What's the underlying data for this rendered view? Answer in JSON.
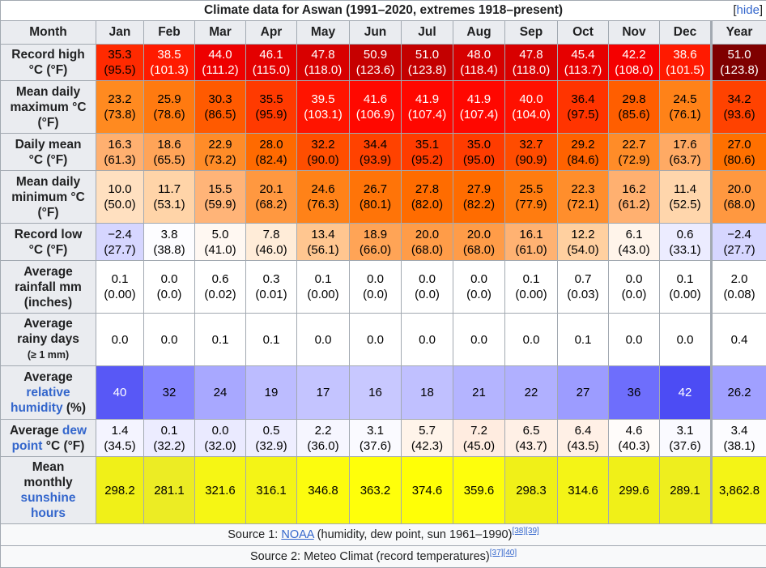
{
  "title": "Climate data for Aswan (1991–2020, extremes 1918–present)",
  "hide_label": "hide",
  "corner_label": "Month",
  "months": [
    "Jan",
    "Feb",
    "Mar",
    "Apr",
    "May",
    "Jun",
    "Jul",
    "Aug",
    "Sep",
    "Oct",
    "Nov",
    "Dec",
    "Year"
  ],
  "rows": [
    {
      "label_parts": [
        {
          "text": "Record high"
        },
        {
          "br": true
        },
        {
          "text": "°C (°F)"
        }
      ],
      "cells": [
        [
          "35.3",
          "(95.5)",
          "#ff2a00",
          "#000000"
        ],
        [
          "38.5",
          "(101.3)",
          "#ff1a00",
          "#ffffff"
        ],
        [
          "44.0",
          "(111.2)",
          "#ee0000",
          "#ffffff"
        ],
        [
          "46.1",
          "(115.0)",
          "#e30000",
          "#ffffff"
        ],
        [
          "47.8",
          "(118.0)",
          "#d80000",
          "#ffffff"
        ],
        [
          "50.9",
          "(123.6)",
          "#c60000",
          "#ffffff"
        ],
        [
          "51.0",
          "(123.8)",
          "#c30000",
          "#ffffff"
        ],
        [
          "48.0",
          "(118.4)",
          "#d60000",
          "#ffffff"
        ],
        [
          "47.8",
          "(118.0)",
          "#d80000",
          "#ffffff"
        ],
        [
          "45.4",
          "(113.7)",
          "#e60000",
          "#ffffff"
        ],
        [
          "42.2",
          "(108.0)",
          "#f50000",
          "#ffffff"
        ],
        [
          "38.6",
          "(101.5)",
          "#ff1a00",
          "#ffffff"
        ],
        [
          "51.0",
          "(123.8)",
          "#7f0000",
          "#ffffff"
        ]
      ]
    },
    {
      "label_parts": [
        {
          "text": "Mean daily"
        },
        {
          "br": true
        },
        {
          "text": "maximum °C"
        },
        {
          "br": true
        },
        {
          "text": "(°F)"
        }
      ],
      "cells": [
        [
          "23.2",
          "(73.8)",
          "#ff8a20",
          "#000000"
        ],
        [
          "25.9",
          "(78.6)",
          "#ff7a10",
          "#000000"
        ],
        [
          "30.3",
          "(86.5)",
          "#ff5a00",
          "#000000"
        ],
        [
          "35.5",
          "(95.9)",
          "#ff3a00",
          "#000000"
        ],
        [
          "39.5",
          "(103.1)",
          "#ff1400",
          "#ffffff"
        ],
        [
          "41.6",
          "(106.9)",
          "#ff0800",
          "#ffffff"
        ],
        [
          "41.9",
          "(107.4)",
          "#ff0700",
          "#ffffff"
        ],
        [
          "41.9",
          "(107.4)",
          "#ff0700",
          "#ffffff"
        ],
        [
          "40.0",
          "(104.0)",
          "#ff1000",
          "#ffffff"
        ],
        [
          "36.4",
          "(97.5)",
          "#ff3400",
          "#000000"
        ],
        [
          "29.8",
          "(85.6)",
          "#ff5e00",
          "#000000"
        ],
        [
          "24.5",
          "(76.1)",
          "#ff8218",
          "#000000"
        ],
        [
          "34.2",
          "(93.6)",
          "#ff4200",
          "#000000"
        ]
      ]
    },
    {
      "label_parts": [
        {
          "text": "Daily mean"
        },
        {
          "br": true
        },
        {
          "text": "°C (°F)"
        }
      ],
      "cells": [
        [
          "16.3",
          "(61.3)",
          "#ffb070",
          "#000000"
        ],
        [
          "18.6",
          "(65.5)",
          "#ffa458",
          "#000000"
        ],
        [
          "22.9",
          "(73.2)",
          "#ff8c28",
          "#000000"
        ],
        [
          "28.0",
          "(82.4)",
          "#ff6a00",
          "#000000"
        ],
        [
          "32.2",
          "(90.0)",
          "#ff4e00",
          "#000000"
        ],
        [
          "34.4",
          "(93.9)",
          "#ff4200",
          "#000000"
        ],
        [
          "35.1",
          "(95.2)",
          "#ff3c00",
          "#000000"
        ],
        [
          "35.0",
          "(95.0)",
          "#ff3c00",
          "#000000"
        ],
        [
          "32.7",
          "(90.9)",
          "#ff4c00",
          "#000000"
        ],
        [
          "29.2",
          "(84.6)",
          "#ff6200",
          "#000000"
        ],
        [
          "22.7",
          "(72.9)",
          "#ff8c28",
          "#000000"
        ],
        [
          "17.6",
          "(63.7)",
          "#ffaa64",
          "#000000"
        ],
        [
          "27.0",
          "(80.6)",
          "#ff7000",
          "#000000"
        ]
      ]
    },
    {
      "label_parts": [
        {
          "text": "Mean daily"
        },
        {
          "br": true
        },
        {
          "text": "minimum °C"
        },
        {
          "br": true
        },
        {
          "text": "(°F)"
        }
      ],
      "cells": [
        [
          "10.0",
          "(50.0)",
          "#ffe0c0",
          "#000000"
        ],
        [
          "11.7",
          "(53.1)",
          "#ffd4a8",
          "#000000"
        ],
        [
          "15.5",
          "(59.9)",
          "#ffb478",
          "#000000"
        ],
        [
          "20.1",
          "(68.2)",
          "#ff9840",
          "#000000"
        ],
        [
          "24.6",
          "(76.3)",
          "#ff8218",
          "#000000"
        ],
        [
          "26.7",
          "(80.1)",
          "#ff7408",
          "#000000"
        ],
        [
          "27.8",
          "(82.0)",
          "#ff6c00",
          "#000000"
        ],
        [
          "27.9",
          "(82.2)",
          "#ff6c00",
          "#000000"
        ],
        [
          "25.5",
          "(77.9)",
          "#ff7c10",
          "#000000"
        ],
        [
          "22.3",
          "(72.1)",
          "#ff8e2c",
          "#000000"
        ],
        [
          "16.2",
          "(61.2)",
          "#ffb070",
          "#000000"
        ],
        [
          "11.4",
          "(52.5)",
          "#ffd6ac",
          "#000000"
        ],
        [
          "20.0",
          "(68.0)",
          "#ff9840",
          "#000000"
        ]
      ]
    },
    {
      "label_parts": [
        {
          "text": "Record low"
        },
        {
          "br": true
        },
        {
          "text": "°C (°F)"
        }
      ],
      "cells": [
        [
          "−2.4",
          "(27.7)",
          "#d6d6ff",
          "#000000"
        ],
        [
          "3.8",
          "(38.8)",
          "#fdfdff",
          "#000000"
        ],
        [
          "5.0",
          "(41.0)",
          "#fff8f2",
          "#000000"
        ],
        [
          "7.8",
          "(46.0)",
          "#ffecd8",
          "#000000"
        ],
        [
          "13.4",
          "(56.1)",
          "#ffc690",
          "#000000"
        ],
        [
          "18.9",
          "(66.0)",
          "#ffa456",
          "#000000"
        ],
        [
          "20.0",
          "(68.0)",
          "#ff9c48",
          "#000000"
        ],
        [
          "20.0",
          "(68.0)",
          "#ff9c48",
          "#000000"
        ],
        [
          "16.1",
          "(61.0)",
          "#ffb272",
          "#000000"
        ],
        [
          "12.2",
          "(54.0)",
          "#ffd0a0",
          "#000000"
        ],
        [
          "6.1",
          "(43.0)",
          "#fff4ea",
          "#000000"
        ],
        [
          "0.6",
          "(33.1)",
          "#ececff",
          "#000000"
        ],
        [
          "−2.4",
          "(27.7)",
          "#d6d6ff",
          "#000000"
        ]
      ]
    },
    {
      "label_parts": [
        {
          "text": "Average"
        },
        {
          "br": true
        },
        {
          "text": "rainfall mm"
        },
        {
          "br": true
        },
        {
          "text": "(inches)"
        }
      ],
      "cells": [
        [
          "0.1",
          "(0.00)",
          "#ffffff",
          "#000000"
        ],
        [
          "0.0",
          "(0.0)",
          "#ffffff",
          "#000000"
        ],
        [
          "0.6",
          "(0.02)",
          "#ffffff",
          "#000000"
        ],
        [
          "0.3",
          "(0.01)",
          "#ffffff",
          "#000000"
        ],
        [
          "0.1",
          "(0.00)",
          "#ffffff",
          "#000000"
        ],
        [
          "0.0",
          "(0.0)",
          "#ffffff",
          "#000000"
        ],
        [
          "0.0",
          "(0.0)",
          "#ffffff",
          "#000000"
        ],
        [
          "0.0",
          "(0.0)",
          "#ffffff",
          "#000000"
        ],
        [
          "0.1",
          "(0.00)",
          "#ffffff",
          "#000000"
        ],
        [
          "0.7",
          "(0.03)",
          "#ffffff",
          "#000000"
        ],
        [
          "0.0",
          "(0.0)",
          "#ffffff",
          "#000000"
        ],
        [
          "0.1",
          "(0.00)",
          "#ffffff",
          "#000000"
        ],
        [
          "2.0",
          "(0.08)",
          "#ffffff",
          "#000000"
        ]
      ]
    },
    {
      "label_parts": [
        {
          "text": "Average"
        },
        {
          "br": true
        },
        {
          "text": "rainy days"
        },
        {
          "br": true
        },
        {
          "text": "(≥ 1 mm)",
          "small": true
        }
      ],
      "cells": [
        [
          "0.0",
          "",
          "#ffffff",
          "#000000"
        ],
        [
          "0.0",
          "",
          "#ffffff",
          "#000000"
        ],
        [
          "0.1",
          "",
          "#ffffff",
          "#000000"
        ],
        [
          "0.1",
          "",
          "#ffffff",
          "#000000"
        ],
        [
          "0.0",
          "",
          "#ffffff",
          "#000000"
        ],
        [
          "0.0",
          "",
          "#ffffff",
          "#000000"
        ],
        [
          "0.0",
          "",
          "#ffffff",
          "#000000"
        ],
        [
          "0.0",
          "",
          "#ffffff",
          "#000000"
        ],
        [
          "0.0",
          "",
          "#ffffff",
          "#000000"
        ],
        [
          "0.1",
          "",
          "#ffffff",
          "#000000"
        ],
        [
          "0.0",
          "",
          "#ffffff",
          "#000000"
        ],
        [
          "0.0",
          "",
          "#ffffff",
          "#000000"
        ],
        [
          "0.4",
          "",
          "#ffffff",
          "#000000"
        ]
      ]
    },
    {
      "label_parts": [
        {
          "text": "Average"
        },
        {
          "br": true
        },
        {
          "text": "relative",
          "link": true
        },
        {
          "br": true
        },
        {
          "text": "humidity",
          "link": true
        },
        {
          "text": " (%)"
        }
      ],
      "cells": [
        [
          "40",
          "",
          "#5858f6",
          "#ffffff"
        ],
        [
          "32",
          "",
          "#8686ff",
          "#000000"
        ],
        [
          "24",
          "",
          "#a8a8ff",
          "#000000"
        ],
        [
          "19",
          "",
          "#bcbcff",
          "#000000"
        ],
        [
          "17",
          "",
          "#c4c4ff",
          "#000000"
        ],
        [
          "16",
          "",
          "#c8c8ff",
          "#000000"
        ],
        [
          "18",
          "",
          "#c0c0ff",
          "#000000"
        ],
        [
          "21",
          "",
          "#b4b4ff",
          "#000000"
        ],
        [
          "22",
          "",
          "#b0b0ff",
          "#000000"
        ],
        [
          "27",
          "",
          "#9c9cff",
          "#000000"
        ],
        [
          "36",
          "",
          "#6e6efc",
          "#000000"
        ],
        [
          "42",
          "",
          "#4c4cf4",
          "#ffffff"
        ],
        [
          "26.2",
          "",
          "#a0a0ff",
          "#000000"
        ]
      ]
    },
    {
      "label_parts": [
        {
          "text": "Average "
        },
        {
          "text": "dew",
          "link": true
        },
        {
          "br": true
        },
        {
          "text": "point",
          "link": true
        },
        {
          "text": " °C (°F)"
        }
      ],
      "cells": [
        [
          "1.4",
          "(34.5)",
          "#f4f4ff",
          "#000000"
        ],
        [
          "0.1",
          "(32.2)",
          "#ececff",
          "#000000"
        ],
        [
          "0.0",
          "(32.0)",
          "#eaeaff",
          "#000000"
        ],
        [
          "0.5",
          "(32.9)",
          "#eeeeff",
          "#000000"
        ],
        [
          "2.2",
          "(36.0)",
          "#f6f6ff",
          "#000000"
        ],
        [
          "3.1",
          "(37.6)",
          "#fafaff",
          "#000000"
        ],
        [
          "5.7",
          "(42.3)",
          "#fff4ea",
          "#000000"
        ],
        [
          "7.2",
          "(45.0)",
          "#ffece0",
          "#000000"
        ],
        [
          "6.5",
          "(43.7)",
          "#fff0e6",
          "#000000"
        ],
        [
          "6.4",
          "(43.5)",
          "#fff0e6",
          "#000000"
        ],
        [
          "4.6",
          "(40.3)",
          "#fffcfa",
          "#000000"
        ],
        [
          "3.1",
          "(37.6)",
          "#fafaff",
          "#000000"
        ],
        [
          "3.4",
          "(38.1)",
          "#fcfcff",
          "#000000"
        ]
      ]
    },
    {
      "label_parts": [
        {
          "text": "Mean"
        },
        {
          "br": true
        },
        {
          "text": "monthly"
        },
        {
          "br": true
        },
        {
          "text": "sunshine",
          "link": true
        },
        {
          "br": true
        },
        {
          "text": "hours",
          "link": true
        }
      ],
      "cells": [
        [
          "298.2",
          "",
          "#f0f018",
          "#000000"
        ],
        [
          "281.1",
          "",
          "#ecec24",
          "#000000"
        ],
        [
          "321.6",
          "",
          "#f6f614",
          "#000000"
        ],
        [
          "316.1",
          "",
          "#f4f416",
          "#000000"
        ],
        [
          "346.8",
          "",
          "#fcfc0e",
          "#000000"
        ],
        [
          "363.2",
          "",
          "#ffff0a",
          "#000000"
        ],
        [
          "374.6",
          "",
          "#ffff06",
          "#000000"
        ],
        [
          "359.6",
          "",
          "#fefe0c",
          "#000000"
        ],
        [
          "298.3",
          "",
          "#f0f018",
          "#000000"
        ],
        [
          "314.6",
          "",
          "#f4f416",
          "#000000"
        ],
        [
          "299.6",
          "",
          "#f0f018",
          "#000000"
        ],
        [
          "289.1",
          "",
          "#eeee1e",
          "#000000"
        ],
        [
          "3,862.8",
          "",
          "#f4f416",
          "#000000"
        ]
      ]
    }
  ],
  "sources": [
    {
      "prefix": "Source 1: ",
      "link": "NOAA",
      "rest": " (humidity, dew point, sun 1961–1990)",
      "refs": "[38][39]"
    },
    {
      "prefix": "Source 2: ",
      "link": "",
      "rest": "Meteo Climat (record temperatures)",
      "refs": "[37][40]"
    }
  ]
}
